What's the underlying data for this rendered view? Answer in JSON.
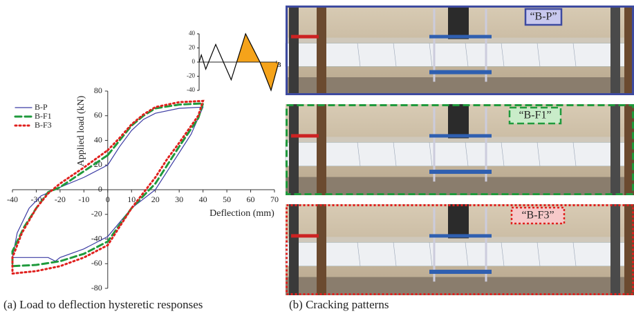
{
  "chart_data": [
    {
      "type": "line",
      "x_label": "Deflection (mm)",
      "y_label": "Applied load (kN)",
      "xlim": [
        -40,
        70
      ],
      "xticks": [
        -40,
        -30,
        -20,
        -10,
        0,
        10,
        20,
        30,
        40,
        50,
        60,
        70
      ],
      "ylim": [
        -80,
        80
      ],
      "yticks": [
        -80,
        -60,
        -40,
        -20,
        0,
        20,
        40,
        60,
        80
      ],
      "grid": false,
      "legend": "upper left",
      "series": [
        {
          "name": "B-P",
          "color": "#3b3ba3",
          "line_style": "solid",
          "x": [
            0,
            5,
            10,
            15,
            20,
            30,
            40,
            35,
            30,
            25,
            20,
            10,
            0,
            -10,
            -20,
            -22,
            -25,
            -40,
            -38,
            -33,
            -28,
            -20,
            -10,
            0
          ],
          "values": [
            20,
            35,
            48,
            57,
            62,
            66,
            67,
            45,
            30,
            15,
            0,
            -15,
            -38,
            -48,
            -55,
            -58,
            -55,
            -55,
            -35,
            -15,
            -5,
            2,
            10,
            20
          ]
        },
        {
          "name": "B-F1",
          "color": "#1f9a3c",
          "line_style": "dashed",
          "x": [
            0,
            5,
            10,
            15,
            20,
            30,
            40,
            38,
            30,
            25,
            20,
            10,
            0,
            -10,
            -20,
            -30,
            -40,
            -40,
            -35,
            -30,
            -25,
            -20,
            -10,
            0
          ],
          "values": [
            28,
            40,
            52,
            60,
            66,
            69,
            70,
            58,
            35,
            20,
            5,
            -15,
            -42,
            -52,
            -58,
            -61,
            -62,
            -50,
            -30,
            -15,
            -2,
            2,
            15,
            28
          ]
        },
        {
          "name": "B-F3",
          "color": "#e0201e",
          "line_style": "dotted",
          "x": [
            0,
            5,
            10,
            15,
            20,
            30,
            40,
            38,
            30,
            25,
            20,
            10,
            0,
            -10,
            -20,
            -30,
            -40,
            -40,
            -36,
            -30,
            -25,
            -20,
            -10,
            0
          ],
          "values": [
            32,
            42,
            53,
            61,
            67,
            71,
            72,
            60,
            38,
            25,
            10,
            -15,
            -45,
            -55,
            -62,
            -66,
            -68,
            -55,
            -35,
            -15,
            -3,
            5,
            18,
            32
          ]
        }
      ]
    },
    {
      "type": "line",
      "ylim": [
        -40,
        40
      ],
      "yticks": [
        -40,
        -20,
        0,
        20,
        40
      ],
      "xlim": [
        0,
        14
      ],
      "xticks": [
        {
          "value": 14,
          "label": "3"
        }
      ],
      "fill_color": "#f5a31a",
      "series": [
        {
          "color": "#000000",
          "x": [
            0,
            0.4,
            1.2,
            3,
            5.8,
            8.4,
            11,
            13,
            14.4
          ],
          "values": [
            0,
            10,
            -10,
            25,
            -25,
            40,
            0,
            -40,
            0
          ]
        }
      ]
    }
  ],
  "panels": [
    {
      "label": "“B-P”"
    },
    {
      "label": "“B-F1”"
    },
    {
      "label": "“B-F3”"
    }
  ],
  "captions": [
    "(a) Load to deflection hysteretic responses",
    "(b) Cracking patterns"
  ]
}
